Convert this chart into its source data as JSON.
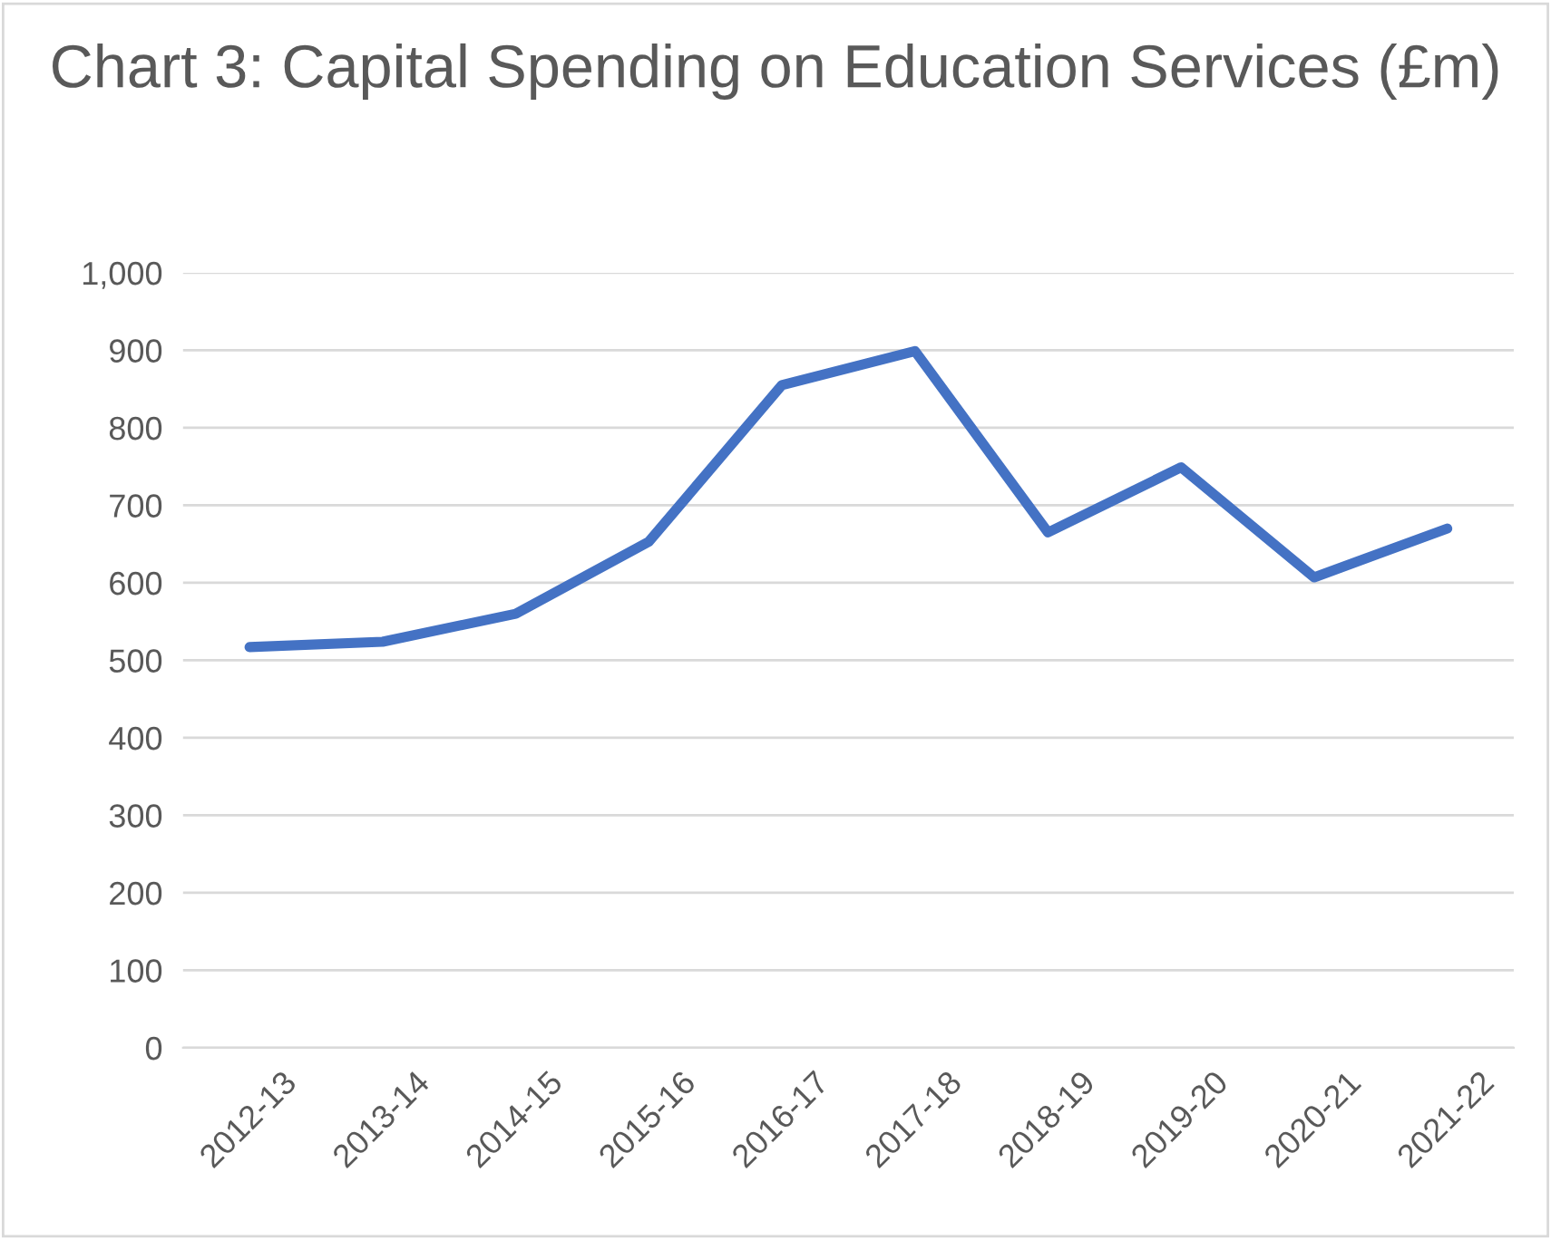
{
  "chart_data": {
    "type": "line",
    "title": "Chart 3: Capital Spending on Education Services (£m)",
    "categories": [
      "2012-13",
      "2013-14",
      "2014-15",
      "2015-16",
      "2016-17",
      "2017-18",
      "2018-19",
      "2019-20",
      "2020-21",
      "2021-22"
    ],
    "series": [
      {
        "color": "#4472c4",
        "values": [
          517,
          524,
          560,
          653,
          855,
          899,
          665,
          749,
          607,
          670
        ]
      }
    ],
    "ylim": [
      0,
      1000
    ],
    "yticks": [
      0,
      100,
      200,
      300,
      400,
      500,
      600,
      700,
      800,
      900,
      {
        "value": 1000,
        "label": "1,000"
      }
    ],
    "grid": "y",
    "marker": "none",
    "line_style": "solid"
  }
}
